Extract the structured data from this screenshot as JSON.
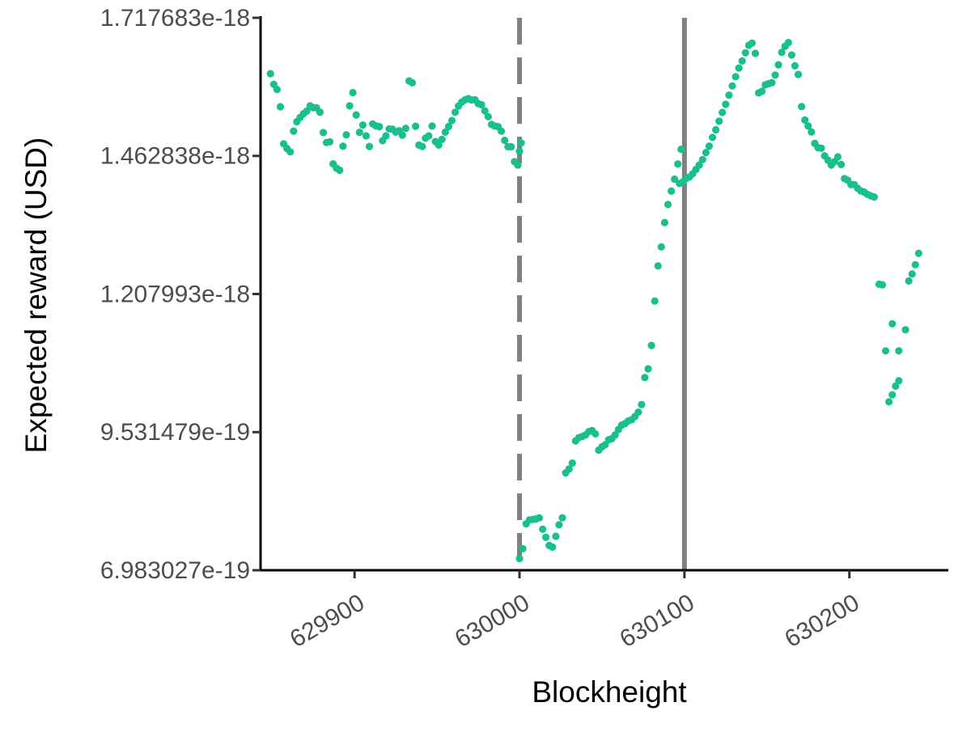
{
  "chart_data": {
    "type": "scatter",
    "xlabel": "Blockheight",
    "ylabel": "Expected reward (USD)",
    "xlim": [
      629843,
      630260
    ],
    "ylim": [
      6.983027e-19,
      1.717683e-18
    ],
    "x_ticks": [
      {
        "value": 629900,
        "label": "629900"
      },
      {
        "value": 630000,
        "label": "630000"
      },
      {
        "value": 630100,
        "label": "630100"
      },
      {
        "value": 630200,
        "label": "630200"
      }
    ],
    "y_ticks": [
      {
        "value": 6.983027e-19,
        "label": "6.983027e-19"
      },
      {
        "value": 9.531479e-19,
        "label": "9.531479e-19"
      },
      {
        "value": 1.207993e-18,
        "label": "1.207993e-18"
      },
      {
        "value": 1.462838e-18,
        "label": "1.462838e-18"
      },
      {
        "value": 1.717683e-18,
        "label": "1.717683e-18"
      }
    ],
    "point_color": "#1ABF8F",
    "vlines": [
      {
        "x": 630000,
        "style": "dashed",
        "color": "#808080"
      },
      {
        "x": 630100,
        "style": "solid",
        "color": "#808080"
      }
    ],
    "series": [
      {
        "values": [
          [
            629849,
            1.6145e-18
          ],
          [
            629851,
            1.595e-18
          ],
          [
            629853,
            1.5855e-18
          ],
          [
            629855,
            1.5535e-18
          ],
          [
            629857,
            1.4851e-18
          ],
          [
            629859,
            1.4767e-18
          ],
          [
            629861,
            1.4704e-18
          ],
          [
            629863,
            1.5086e-18
          ],
          [
            629865,
            1.5259e-18
          ],
          [
            629867,
            1.5335e-18
          ],
          [
            629869,
            1.5406e-18
          ],
          [
            629871,
            1.5455e-18
          ],
          [
            629873,
            1.5552e-18
          ],
          [
            629875,
            1.5519e-18
          ],
          [
            629877,
            1.5514e-18
          ],
          [
            629879,
            1.5437e-18
          ],
          [
            629881,
            1.5059e-18
          ],
          [
            629883,
            1.4876e-18
          ],
          [
            629885,
            1.4888e-18
          ],
          [
            629887,
            1.4481e-18
          ],
          [
            629889,
            1.4402e-18
          ],
          [
            629891,
            1.4364e-18
          ],
          [
            629893,
            1.4808e-18
          ],
          [
            629895,
            1.5017e-18
          ],
          [
            629897,
            1.5552e-18
          ],
          [
            629899,
            1.5797e-18
          ],
          [
            629901,
            1.5385e-18
          ],
          [
            629903,
            1.5064e-18
          ],
          [
            629905,
            1.5198e-18
          ],
          [
            629907,
            1.4998e-18
          ],
          [
            629909,
            1.4802e-18
          ],
          [
            629911,
            1.5219e-18
          ],
          [
            629913,
            1.5183e-18
          ],
          [
            629915,
            1.5168e-18
          ],
          [
            629917,
            1.4909e-18
          ],
          [
            629919,
            1.4998e-18
          ],
          [
            629921,
            1.5128e-18
          ],
          [
            629923,
            1.5121e-18
          ],
          [
            629925,
            1.5067e-18
          ],
          [
            629927,
            1.5094e-18
          ],
          [
            629929,
            1.5011e-18
          ],
          [
            629931,
            1.5136e-18
          ],
          [
            629933,
            1.6012e-18
          ],
          [
            629935,
            1.5977e-18
          ],
          [
            629937,
            1.5176e-18
          ],
          [
            629939,
            1.4827e-18
          ],
          [
            629941,
            1.4802e-18
          ],
          [
            629943,
            1.4954e-18
          ],
          [
            629945,
            1.4998e-18
          ],
          [
            629947,
            1.5179e-18
          ],
          [
            629949,
            1.4893e-18
          ],
          [
            629951,
            1.4829e-18
          ],
          [
            629953,
            1.4934e-18
          ],
          [
            629955,
            1.5066e-18
          ],
          [
            629957,
            1.5169e-18
          ],
          [
            629959,
            1.5282e-18
          ],
          [
            629961,
            1.5433e-18
          ],
          [
            629963,
            1.5548e-18
          ],
          [
            629965,
            1.5622e-18
          ],
          [
            629967,
            1.5664e-18
          ],
          [
            629969,
            1.5685e-18
          ],
          [
            629971,
            1.5661e-18
          ],
          [
            629973,
            1.5664e-18
          ],
          [
            629975,
            1.5593e-18
          ],
          [
            629977,
            1.5573e-18
          ],
          [
            629979,
            1.5459e-18
          ],
          [
            629981,
            1.5352e-18
          ],
          [
            629983,
            1.5208e-18
          ],
          [
            629985,
            1.5179e-18
          ],
          [
            629987,
            1.5168e-18
          ],
          [
            629989,
            1.5084e-18
          ],
          [
            629991,
            1.4916e-18
          ],
          [
            629993,
            1.4798e-18
          ],
          [
            629995,
            1.4797e-18
          ],
          [
            629997,
            1.4521e-18
          ],
          [
            629999,
            1.4458e-18
          ],
          [
            630000,
            1.4713e-18
          ],
          [
            630001,
            1.4868e-18
          ],
          [
            630000,
            7.2e-19
          ],
          [
            630002,
            7.38e-19
          ],
          [
            630004,
            7.84e-19
          ],
          [
            630006,
            7.91e-19
          ],
          [
            630008,
            7.92e-19
          ],
          [
            630010,
            7.93e-19
          ],
          [
            630012,
            7.95e-19
          ],
          [
            630014,
            7.74e-19
          ],
          [
            630016,
            7.59e-19
          ],
          [
            630018,
            7.44e-19
          ],
          [
            630020,
            7.41e-19
          ],
          [
            630022,
            7.61e-19
          ],
          [
            630024,
            7.82e-19
          ],
          [
            630026,
            7.95e-19
          ],
          [
            630028,
            8.78e-19
          ],
          [
            630030,
            8.85e-19
          ],
          [
            630032,
            8.96e-19
          ],
          [
            630034,
            9.37e-19
          ],
          [
            630036,
            9.43e-19
          ],
          [
            630038,
            9.45e-19
          ],
          [
            630040,
            9.48e-19
          ],
          [
            630042,
            9.54e-19
          ],
          [
            630044,
            9.56e-19
          ],
          [
            630046,
            9.5e-19
          ],
          [
            630048,
            9.2e-19
          ],
          [
            630050,
            9.26e-19
          ],
          [
            630052,
            9.3e-19
          ],
          [
            630054,
            9.39e-19
          ],
          [
            630056,
            9.41e-19
          ],
          [
            630058,
            9.48e-19
          ],
          [
            630060,
            9.58e-19
          ],
          [
            630062,
            9.66e-19
          ],
          [
            630064,
            9.69e-19
          ],
          [
            630066,
            9.74e-19
          ],
          [
            630068,
            9.76e-19
          ],
          [
            630070,
            9.82e-19
          ],
          [
            630072,
            9.9e-19
          ],
          [
            630074,
            1.004e-18
          ],
          [
            630076,
            1.054e-18
          ],
          [
            630078,
            1.07e-18
          ],
          [
            630080,
            1.113e-18
          ],
          [
            630082,
            1.195e-18
          ],
          [
            630084,
            1.26e-18
          ],
          [
            630086,
            1.295e-18
          ],
          [
            630088,
            1.34e-18
          ],
          [
            630090,
            1.373e-18
          ],
          [
            630092,
            1.398e-18
          ],
          [
            630094,
            1.42e-18
          ],
          [
            630096,
            1.448e-18
          ],
          [
            630098,
            1.475e-18
          ],
          [
            630097,
            1.412e-18
          ],
          [
            630099,
            1.415e-18
          ],
          [
            630101,
            1.421e-18
          ],
          [
            630103,
            1.424e-18
          ],
          [
            630105,
            1.43e-18
          ],
          [
            630107,
            1.438e-18
          ],
          [
            630109,
            1.446e-18
          ],
          [
            630111,
            1.456e-18
          ],
          [
            630113,
            1.469e-18
          ],
          [
            630115,
            1.481e-18
          ],
          [
            630117,
            1.497e-18
          ],
          [
            630119,
            1.511e-18
          ],
          [
            630121,
            1.527e-18
          ],
          [
            630123,
            1.543e-18
          ],
          [
            630125,
            1.558e-18
          ],
          [
            630127,
            1.575e-18
          ],
          [
            630129,
            1.592e-18
          ],
          [
            630131,
            1.609e-18
          ],
          [
            630133,
            1.625e-18
          ],
          [
            630135,
            1.638e-18
          ],
          [
            630137,
            1.653e-18
          ],
          [
            630139,
            1.667e-18
          ],
          [
            630141,
            1.671e-18
          ],
          [
            630143,
            1.652e-18
          ],
          [
            630145,
            1.579e-18
          ],
          [
            630147,
            1.582e-18
          ],
          [
            630149,
            1.594e-18
          ],
          [
            630151,
            1.596e-18
          ],
          [
            630153,
            1.598e-18
          ],
          [
            630155,
            1.612e-18
          ],
          [
            630157,
            1.631e-18
          ],
          [
            630159,
            1.654e-18
          ],
          [
            630161,
            1.665e-18
          ],
          [
            630163,
            1.672e-18
          ],
          [
            630165,
            1.649e-18
          ],
          [
            630167,
            1.629e-18
          ],
          [
            630169,
            1.613e-18
          ],
          [
            630171,
            1.554e-18
          ],
          [
            630173,
            1.529e-18
          ],
          [
            630175,
            1.518e-18
          ],
          [
            630177,
            1.507e-18
          ],
          [
            630179,
            1.486e-18
          ],
          [
            630181,
            1.478e-18
          ],
          [
            630183,
            1.477e-18
          ],
          [
            630185,
            1.463e-18
          ],
          [
            630187,
            1.455e-18
          ],
          [
            630189,
            1.446e-18
          ],
          [
            630191,
            1.452e-18
          ],
          [
            630193,
            1.461e-18
          ],
          [
            630195,
            1.447e-18
          ],
          [
            630197,
            1.421e-18
          ],
          [
            630199,
            1.418e-18
          ],
          [
            630201,
            1.41e-18
          ],
          [
            630203,
            1.41e-18
          ],
          [
            630205,
            1.403e-18
          ],
          [
            630207,
            1.398e-18
          ],
          [
            630209,
            1.396e-18
          ],
          [
            630211,
            1.392e-18
          ],
          [
            630213,
            1.389e-18
          ],
          [
            630215,
            1.387e-18
          ],
          [
            630218,
            1.226e-18
          ],
          [
            630220,
            1.225e-18
          ],
          [
            630222,
            1.103e-18
          ],
          [
            630224,
            1.009e-18
          ],
          [
            630226,
            1.022e-18
          ],
          [
            630228,
            1.038e-18
          ],
          [
            630230,
            1.048e-18
          ],
          [
            630226,
            1.153e-18
          ],
          [
            630230,
            1.103e-18
          ],
          [
            630234,
            1.142e-18
          ],
          [
            630236,
            1.232e-18
          ],
          [
            630238,
            1.245e-18
          ],
          [
            630240,
            1.262e-18
          ],
          [
            630242,
            1.283e-18
          ]
        ]
      }
    ]
  }
}
